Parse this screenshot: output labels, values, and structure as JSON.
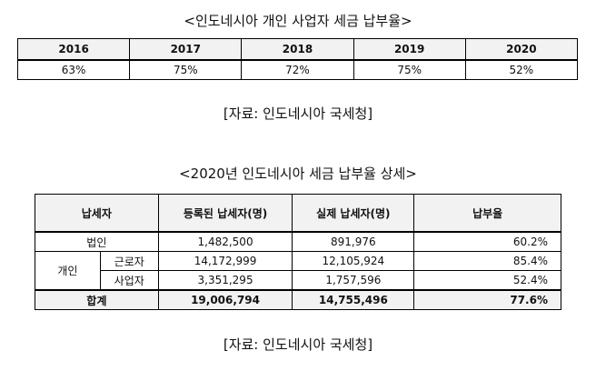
{
  "title1": "<인도네시아 개인 사업자 세금 납부율>",
  "table1": {
    "headers": [
      "2016",
      "2017",
      "2018",
      "2019",
      "2020"
    ],
    "values": [
      "63%",
      "75%",
      "72%",
      "75%",
      "52%"
    ]
  },
  "source1": "[자료: 인도네시아 국세청]",
  "title2": "<2020년 인도네시아 세금 납부율 상세>",
  "table2": {
    "headers": [
      "납세자",
      "등록된 납세자(명)",
      "실제 납세자(명)",
      "납부율"
    ],
    "corp": {
      "label": "법인",
      "registered": "1,482,500",
      "actual": "891,976",
      "rate": "60.2%"
    },
    "individual_label": "개인",
    "worker": {
      "label": "근로자",
      "registered": "14,172,999",
      "actual": "12,105,924",
      "rate": "85.4%"
    },
    "business": {
      "label": "사업자",
      "registered": "3,351,295",
      "actual": "1,757,596",
      "rate": "52.4%"
    },
    "total": {
      "label": "합계",
      "registered": "19,006,794",
      "actual": "14,755,496",
      "rate": "77.6%"
    }
  },
  "source2": "[자료: 인도네시아 국세청]"
}
